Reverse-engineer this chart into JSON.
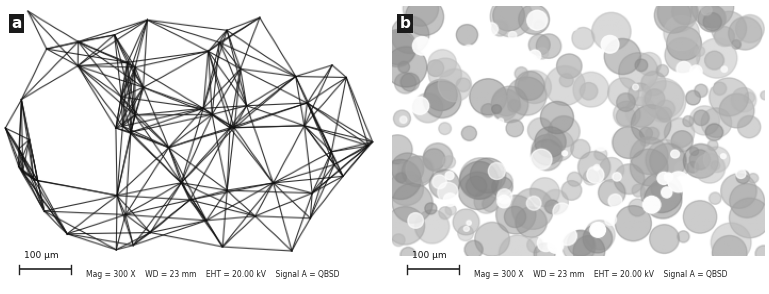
{
  "figsize": [
    7.69,
    2.94
  ],
  "dpi": 100,
  "bg_color": "#d0d0d0",
  "label_a": "a",
  "label_b": "b",
  "scale_text": "100 μm",
  "meta_text_a": "Mag = 300 X    WD = 23 mm    EHT = 20.00 kV    Signal A = QBSD",
  "meta_text_b": "Mag = 300 X    WD = 23 mm    EHT = 20.00 kV    Signal A = QBSD",
  "label_box_color": "#1a1a1a",
  "label_text_color": "#ffffff",
  "bottom_bar_color": "#e8e8e8",
  "scale_bar_color": "#222222",
  "meta_fontsize": 5.5,
  "label_fontsize": 11,
  "scale_fontsize": 6.5
}
